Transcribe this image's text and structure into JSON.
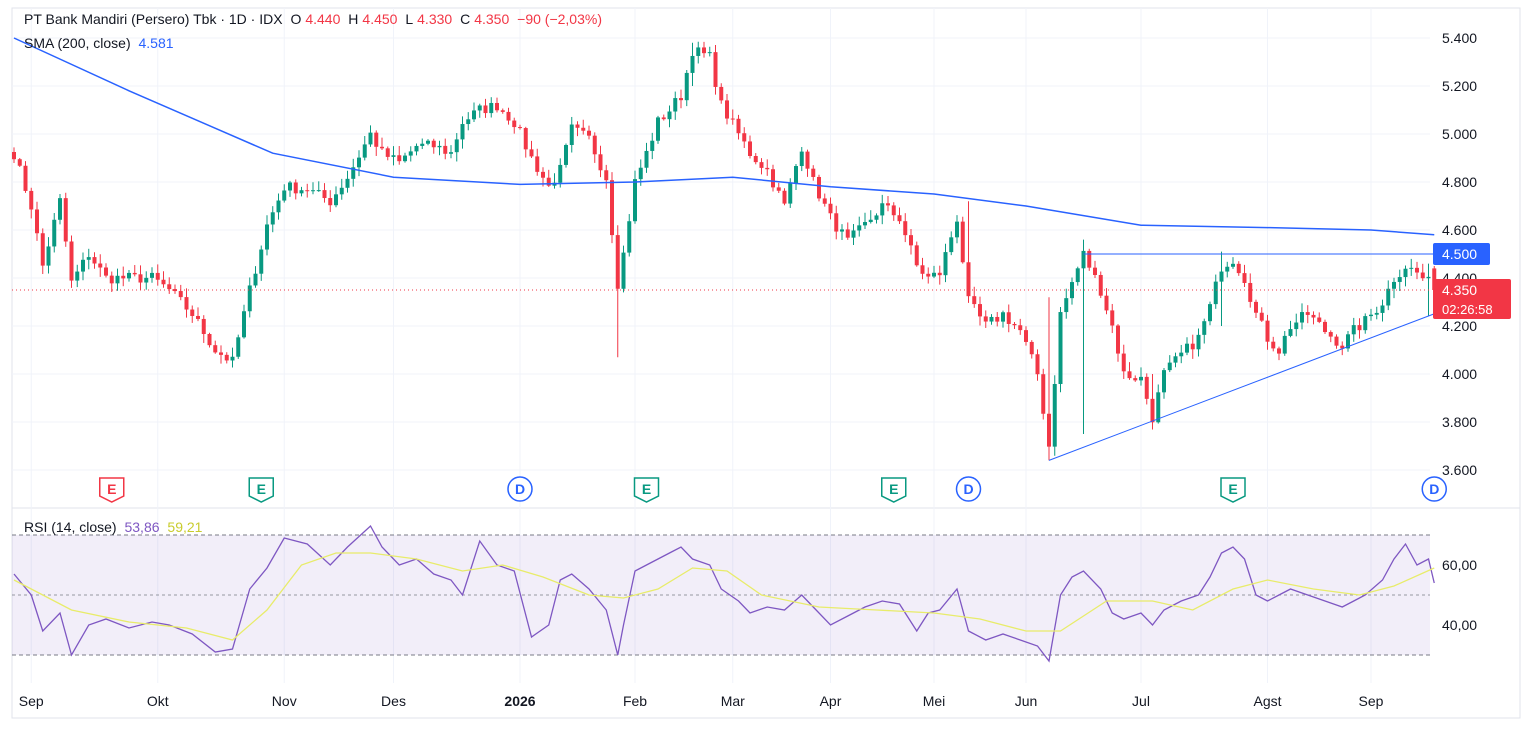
{
  "header": {
    "title": "PT Bank Mandiri (Persero) Tbk · 1D · IDX",
    "o_label": "O",
    "o_value": "4.440",
    "h_label": "H",
    "h_value": "4.450",
    "l_label": "L",
    "l_value": "4.330",
    "c_label": "C",
    "c_value": "4.350",
    "change": "−90 (−2,03%)"
  },
  "sma": {
    "label": "SMA (200, close)",
    "value": "4.581"
  },
  "rsi": {
    "label": "RSI (14, close)",
    "value": "53,86",
    "ma_value": "59,21"
  },
  "price_badges": {
    "level": "4.500",
    "last": "4.350",
    "countdown": "02:26:58"
  },
  "colors": {
    "up": "#089981",
    "down": "#f23645",
    "sma": "#2962ff",
    "rsi": "#7e57c2",
    "rsi_ma": "#e8ec6a",
    "trendline": "#2962ff"
  },
  "chart_data": [
    {
      "type": "candlestick",
      "y_ticks": [
        "5.400",
        "5.200",
        "5.000",
        "4.800",
        "4.600",
        "4.400",
        "4.200",
        "4.000",
        "3.800",
        "3.600"
      ],
      "ylim": [
        3.55,
        5.48
      ],
      "x_ticks": [
        "Sep",
        "Okt",
        "Nov",
        "Des",
        "2026",
        "Feb",
        "Mar",
        "Apr",
        "Mei",
        "Jun",
        "Jul",
        "Agst",
        "Sep"
      ],
      "x_tick_index": [
        3,
        25,
        47,
        66,
        88,
        108,
        125,
        142,
        160,
        176,
        196,
        218,
        236
      ],
      "bar_count": 248,
      "anchors": [
        [
          0,
          4.92
        ],
        [
          3,
          4.7
        ],
        [
          5,
          4.45
        ],
        [
          8,
          4.72
        ],
        [
          10,
          4.38
        ],
        [
          13,
          4.5
        ],
        [
          16,
          4.4
        ],
        [
          20,
          4.4
        ],
        [
          24,
          4.4
        ],
        [
          27,
          4.35
        ],
        [
          31,
          4.25
        ],
        [
          35,
          4.1
        ],
        [
          38,
          4.05
        ],
        [
          41,
          4.35
        ],
        [
          44,
          4.62
        ],
        [
          47,
          4.78
        ],
        [
          51,
          4.77
        ],
        [
          55,
          4.72
        ],
        [
          58,
          4.82
        ],
        [
          62,
          5.0
        ],
        [
          64,
          4.92
        ],
        [
          67,
          4.88
        ],
        [
          70,
          4.95
        ],
        [
          73,
          4.95
        ],
        [
          76,
          4.92
        ],
        [
          78,
          5.05
        ],
        [
          81,
          5.1
        ],
        [
          84,
          5.12
        ],
        [
          87,
          5.05
        ],
        [
          90,
          4.9
        ],
        [
          93,
          4.78
        ],
        [
          95,
          4.85
        ],
        [
          97,
          5.02
        ],
        [
          100,
          4.98
        ],
        [
          103,
          4.82
        ],
        [
          105,
          4.38
        ],
        [
          106,
          4.5
        ],
        [
          108,
          4.8
        ],
        [
          110,
          4.92
        ],
        [
          112,
          5.05
        ],
        [
          114,
          5.1
        ],
        [
          116,
          5.16
        ],
        [
          118,
          5.35
        ],
        [
          121,
          5.32
        ],
        [
          123,
          5.12
        ],
        [
          126,
          5.0
        ],
        [
          128,
          4.92
        ],
        [
          131,
          4.85
        ],
        [
          134,
          4.7
        ],
        [
          137,
          4.95
        ],
        [
          139,
          4.8
        ],
        [
          142,
          4.65
        ],
        [
          145,
          4.55
        ],
        [
          148,
          4.62
        ],
        [
          151,
          4.7
        ],
        [
          154,
          4.65
        ],
        [
          157,
          4.45
        ],
        [
          159,
          4.4
        ],
        [
          161,
          4.42
        ],
        [
          164,
          4.65
        ],
        [
          166,
          4.3
        ],
        [
          169,
          4.2
        ],
        [
          172,
          4.25
        ],
        [
          175,
          4.18
        ],
        [
          178,
          4.0
        ],
        [
          180,
          3.7
        ],
        [
          182,
          4.25
        ],
        [
          184,
          4.38
        ],
        [
          186,
          4.5
        ],
        [
          189,
          4.35
        ],
        [
          191,
          4.2
        ],
        [
          193,
          4.0
        ],
        [
          196,
          3.98
        ],
        [
          198,
          3.82
        ],
        [
          200,
          4.0
        ],
        [
          203,
          4.08
        ],
        [
          206,
          4.15
        ],
        [
          208,
          4.28
        ],
        [
          210,
          4.45
        ],
        [
          212,
          4.48
        ],
        [
          214,
          4.4
        ],
        [
          216,
          4.25
        ],
        [
          218,
          4.15
        ],
        [
          220,
          4.1
        ],
        [
          222,
          4.2
        ],
        [
          225,
          4.25
        ],
        [
          228,
          4.18
        ],
        [
          231,
          4.12
        ],
        [
          233,
          4.18
        ],
        [
          235,
          4.22
        ],
        [
          238,
          4.3
        ],
        [
          240,
          4.4
        ],
        [
          242,
          4.45
        ],
        [
          244,
          4.42
        ],
        [
          246,
          4.38
        ],
        [
          247,
          4.35
        ]
      ],
      "spikes": [
        [
          105,
          4.07,
          4.62
        ],
        [
          180,
          3.64,
          4.32
        ],
        [
          186,
          3.75,
          4.56
        ],
        [
          210,
          4.2,
          4.51
        ],
        [
          246,
          4.24,
          4.46
        ],
        [
          166,
          4.35,
          4.72
        ],
        [
          118,
          5.2,
          5.38
        ],
        [
          198,
          3.81,
          4.0
        ]
      ],
      "last": {
        "open": 4.44,
        "high": 4.45,
        "low": 4.33,
        "close": 4.35
      },
      "sma200": [
        [
          0,
          5.4
        ],
        [
          20,
          5.18
        ],
        [
          45,
          4.92
        ],
        [
          66,
          4.82
        ],
        [
          88,
          4.79
        ],
        [
          108,
          4.8
        ],
        [
          125,
          4.82
        ],
        [
          142,
          4.78
        ],
        [
          160,
          4.75
        ],
        [
          176,
          4.7
        ],
        [
          196,
          4.62
        ],
        [
          218,
          4.61
        ],
        [
          236,
          4.6
        ],
        [
          247,
          4.58
        ]
      ],
      "resistance_line": {
        "from": [
          186,
          4.5
        ],
        "to": [
          247,
          4.5
        ]
      },
      "support_line": {
        "from": [
          180,
          3.64
        ],
        "to": [
          248,
          4.26
        ]
      },
      "events": [
        {
          "index": 17,
          "letter": "E",
          "kind": "earnings-negative"
        },
        {
          "index": 43,
          "letter": "E",
          "kind": "earnings-positive"
        },
        {
          "index": 88,
          "letter": "D",
          "kind": "dividend"
        },
        {
          "index": 110,
          "letter": "E",
          "kind": "earnings-positive"
        },
        {
          "index": 153,
          "letter": "E",
          "kind": "earnings-positive"
        },
        {
          "index": 166,
          "letter": "D",
          "kind": "dividend"
        },
        {
          "index": 212,
          "letter": "E",
          "kind": "earnings-positive"
        },
        {
          "index": 247,
          "letter": "D",
          "kind": "dividend"
        }
      ]
    },
    {
      "type": "line",
      "name": "RSI",
      "y_ticks": [
        "60,00",
        "40,00"
      ],
      "ylim": [
        25,
        77
      ],
      "band": [
        30,
        70
      ],
      "midline": 50,
      "rsi": [
        [
          0,
          57
        ],
        [
          3,
          50
        ],
        [
          5,
          38
        ],
        [
          8,
          44
        ],
        [
          10,
          30
        ],
        [
          13,
          40
        ],
        [
          16,
          42
        ],
        [
          20,
          39
        ],
        [
          24,
          41
        ],
        [
          27,
          40
        ],
        [
          31,
          37
        ],
        [
          35,
          31
        ],
        [
          38,
          32
        ],
        [
          41,
          52
        ],
        [
          44,
          59
        ],
        [
          47,
          69
        ],
        [
          51,
          67
        ],
        [
          55,
          60
        ],
        [
          58,
          66
        ],
        [
          62,
          73
        ],
        [
          64,
          66
        ],
        [
          67,
          60
        ],
        [
          70,
          62
        ],
        [
          73,
          57
        ],
        [
          76,
          55
        ],
        [
          78,
          50
        ],
        [
          81,
          68
        ],
        [
          84,
          60
        ],
        [
          87,
          58
        ],
        [
          90,
          36
        ],
        [
          93,
          40
        ],
        [
          95,
          55
        ],
        [
          97,
          57
        ],
        [
          100,
          52
        ],
        [
          103,
          45
        ],
        [
          105,
          30
        ],
        [
          106,
          40
        ],
        [
          108,
          58
        ],
        [
          110,
          60
        ],
        [
          112,
          62
        ],
        [
          114,
          64
        ],
        [
          116,
          66
        ],
        [
          118,
          62
        ],
        [
          121,
          60
        ],
        [
          123,
          52
        ],
        [
          126,
          48
        ],
        [
          128,
          44
        ],
        [
          131,
          46
        ],
        [
          134,
          45
        ],
        [
          137,
          50
        ],
        [
          139,
          46
        ],
        [
          142,
          40
        ],
        [
          145,
          43
        ],
        [
          148,
          46
        ],
        [
          151,
          48
        ],
        [
          154,
          47
        ],
        [
          157,
          38
        ],
        [
          159,
          44
        ],
        [
          161,
          45
        ],
        [
          164,
          52
        ],
        [
          166,
          38
        ],
        [
          169,
          35
        ],
        [
          172,
          37
        ],
        [
          175,
          35
        ],
        [
          178,
          33
        ],
        [
          180,
          28
        ],
        [
          182,
          50
        ],
        [
          184,
          56
        ],
        [
          186,
          58
        ],
        [
          189,
          52
        ],
        [
          191,
          44
        ],
        [
          193,
          42
        ],
        [
          196,
          44
        ],
        [
          198,
          40
        ],
        [
          200,
          45
        ],
        [
          203,
          48
        ],
        [
          206,
          50
        ],
        [
          208,
          56
        ],
        [
          210,
          64
        ],
        [
          212,
          66
        ],
        [
          214,
          62
        ],
        [
          216,
          50
        ],
        [
          218,
          48
        ],
        [
          220,
          50
        ],
        [
          222,
          52
        ],
        [
          225,
          50
        ],
        [
          228,
          48
        ],
        [
          231,
          46
        ],
        [
          233,
          48
        ],
        [
          235,
          50
        ],
        [
          238,
          55
        ],
        [
          240,
          62
        ],
        [
          242,
          67
        ],
        [
          244,
          60
        ],
        [
          246,
          62
        ],
        [
          247,
          54
        ]
      ],
      "rsi_ma": [
        [
          0,
          55
        ],
        [
          10,
          45
        ],
        [
          20,
          41
        ],
        [
          30,
          39
        ],
        [
          38,
          35
        ],
        [
          44,
          45
        ],
        [
          50,
          60
        ],
        [
          56,
          64
        ],
        [
          62,
          64
        ],
        [
          70,
          62
        ],
        [
          78,
          58
        ],
        [
          85,
          60
        ],
        [
          92,
          56
        ],
        [
          100,
          50
        ],
        [
          106,
          49
        ],
        [
          112,
          52
        ],
        [
          118,
          59
        ],
        [
          124,
          58
        ],
        [
          130,
          50
        ],
        [
          140,
          46
        ],
        [
          150,
          45
        ],
        [
          160,
          44
        ],
        [
          168,
          42
        ],
        [
          176,
          38
        ],
        [
          182,
          38
        ],
        [
          190,
          48
        ],
        [
          198,
          48
        ],
        [
          205,
          45
        ],
        [
          212,
          52
        ],
        [
          218,
          55
        ],
        [
          226,
          52
        ],
        [
          234,
          50
        ],
        [
          240,
          53
        ],
        [
          247,
          59
        ]
      ],
      "x_ticks": [
        "Sep",
        "Okt",
        "Nov",
        "Des",
        "2026",
        "Feb",
        "Mar",
        "Apr",
        "Mei",
        "Jun",
        "Jul",
        "Agst",
        "Sep"
      ]
    }
  ]
}
